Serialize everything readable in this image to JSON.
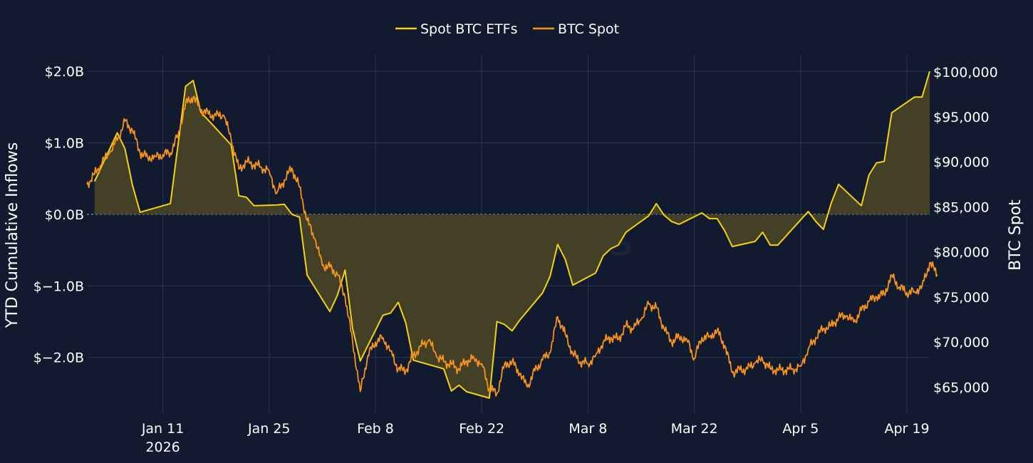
{
  "chart_data": {
    "type": "line",
    "legend_position": "top-center",
    "grid": true,
    "watermark": "blockschres",
    "colors": {
      "background": "#111a2e",
      "etf": "#f5d20f",
      "etf_fill": "#4a4526",
      "spot": "#f7931a",
      "grid": "#283655",
      "zero_line": "#8a93a5"
    },
    "x_axis": {
      "range": [
        "2026-01-01",
        "2026-04-22"
      ],
      "ticks": [
        {
          "date": "2026-01-11",
          "label": "Jan 11",
          "sub": "2026"
        },
        {
          "date": "2026-01-25",
          "label": "Jan 25",
          "sub": ""
        },
        {
          "date": "2026-02-08",
          "label": "Feb 8",
          "sub": ""
        },
        {
          "date": "2026-02-22",
          "label": "Feb 22",
          "sub": ""
        },
        {
          "date": "2026-03-08",
          "label": "Mar 8",
          "sub": ""
        },
        {
          "date": "2026-03-22",
          "label": "Mar 22",
          "sub": ""
        },
        {
          "date": "2026-04-05",
          "label": "Apr 5",
          "sub": ""
        },
        {
          "date": "2026-04-19",
          "label": "Apr 19",
          "sub": ""
        }
      ]
    },
    "y_left": {
      "label": "YTD Cumulative Inflows",
      "unit": "B USD",
      "range": [
        -2.78,
        2.22
      ],
      "ticks": [
        {
          "value": 2.0,
          "label": "$2.0B"
        },
        {
          "value": 1.0,
          "label": "$1.0B"
        },
        {
          "value": 0.0,
          "label": "$0.0B"
        },
        {
          "value": -1.0,
          "label": "$−1.0B"
        },
        {
          "value": -2.0,
          "label": "$−2.0B"
        }
      ]
    },
    "y_right": {
      "label": "BTC Spot",
      "range": [
        62100,
        101800
      ],
      "ticks": [
        {
          "value": 100000,
          "label": "$100,000"
        },
        {
          "value": 95000,
          "label": "$95,000"
        },
        {
          "value": 90000,
          "label": "$90,000"
        },
        {
          "value": 85000,
          "label": "$85,000"
        },
        {
          "value": 80000,
          "label": "$80,000"
        },
        {
          "value": 75000,
          "label": "$75,000"
        },
        {
          "value": 70000,
          "label": "$70,000"
        },
        {
          "value": 65000,
          "label": "$65,000"
        }
      ]
    },
    "series": [
      {
        "name": "Spot BTC ETFs",
        "axis": "left",
        "style": "line-fill-to-zero",
        "points": [
          [
            "2026-01-02",
            0.46
          ],
          [
            "2026-01-05",
            1.14
          ],
          [
            "2026-01-06",
            0.92
          ],
          [
            "2026-01-07",
            0.41
          ],
          [
            "2026-01-08",
            0.03
          ],
          [
            "2026-01-12",
            0.15
          ],
          [
            "2026-01-14",
            1.79
          ],
          [
            "2026-01-15",
            1.87
          ],
          [
            "2026-01-16",
            1.43
          ],
          [
            "2026-01-20",
            0.97
          ],
          [
            "2026-01-21",
            0.26
          ],
          [
            "2026-01-22",
            0.24
          ],
          [
            "2026-01-23",
            0.12
          ],
          [
            "2026-01-26",
            0.13
          ],
          [
            "2026-01-27",
            0.14
          ],
          [
            "2026-01-28",
            0.0
          ],
          [
            "2026-01-29",
            -0.04
          ],
          [
            "2026-01-30",
            -0.85
          ],
          [
            "2026-02-02",
            -1.36
          ],
          [
            "2026-02-03",
            -1.13
          ],
          [
            "2026-02-04",
            -0.78
          ],
          [
            "2026-02-05",
            -1.6
          ],
          [
            "2026-02-06",
            -2.05
          ],
          [
            "2026-02-09",
            -1.41
          ],
          [
            "2026-02-10",
            -1.38
          ],
          [
            "2026-02-11",
            -1.23
          ],
          [
            "2026-02-12",
            -1.52
          ],
          [
            "2026-02-13",
            -2.04
          ],
          [
            "2026-02-17",
            -2.16
          ],
          [
            "2026-02-18",
            -2.47
          ],
          [
            "2026-02-19",
            -2.39
          ],
          [
            "2026-02-20",
            -2.48
          ],
          [
            "2026-02-23",
            -2.57
          ],
          [
            "2026-02-24",
            -1.5
          ],
          [
            "2026-02-25",
            -1.54
          ],
          [
            "2026-02-26",
            -1.63
          ],
          [
            "2026-02-27",
            -1.48
          ],
          [
            "2026-03-02",
            -1.1
          ],
          [
            "2026-03-03",
            -0.87
          ],
          [
            "2026-03-04",
            -0.42
          ],
          [
            "2026-03-05",
            -0.63
          ],
          [
            "2026-03-06",
            -0.99
          ],
          [
            "2026-03-09",
            -0.82
          ],
          [
            "2026-03-10",
            -0.58
          ],
          [
            "2026-03-11",
            -0.48
          ],
          [
            "2026-03-12",
            -0.43
          ],
          [
            "2026-03-13",
            -0.25
          ],
          [
            "2026-03-16",
            -0.02
          ],
          [
            "2026-03-17",
            0.15
          ],
          [
            "2026-03-18",
            -0.01
          ],
          [
            "2026-03-19",
            -0.1
          ],
          [
            "2026-03-20",
            -0.14
          ],
          [
            "2026-03-23",
            0.02
          ],
          [
            "2026-03-24",
            -0.06
          ],
          [
            "2026-03-25",
            -0.06
          ],
          [
            "2026-03-26",
            -0.23
          ],
          [
            "2026-03-27",
            -0.45
          ],
          [
            "2026-03-30",
            -0.38
          ],
          [
            "2026-03-31",
            -0.25
          ],
          [
            "2026-04-01",
            -0.43
          ],
          [
            "2026-04-02",
            -0.43
          ],
          [
            "2026-04-06",
            0.04
          ],
          [
            "2026-04-07",
            -0.1
          ],
          [
            "2026-04-08",
            -0.21
          ],
          [
            "2026-04-09",
            0.15
          ],
          [
            "2026-04-10",
            0.42
          ],
          [
            "2026-04-13",
            0.12
          ],
          [
            "2026-04-14",
            0.55
          ],
          [
            "2026-04-15",
            0.72
          ],
          [
            "2026-04-16",
            0.74
          ],
          [
            "2026-04-17",
            1.42
          ],
          [
            "2026-04-20",
            1.64
          ],
          [
            "2026-04-21",
            1.64
          ],
          [
            "2026-04-22",
            2.0
          ]
        ]
      },
      {
        "name": "BTC Spot",
        "axis": "right",
        "style": "line",
        "points": [
          [
            "2026-01-01",
            87500
          ],
          [
            "2026-01-02",
            88600
          ],
          [
            "2026-01-03",
            89900
          ],
          [
            "2026-01-04",
            91000
          ],
          [
            "2026-01-05",
            92400
          ],
          [
            "2026-01-06",
            94500
          ],
          [
            "2026-01-07",
            93500
          ],
          [
            "2026-01-08",
            91000
          ],
          [
            "2026-01-09",
            90500
          ],
          [
            "2026-01-10",
            90600
          ],
          [
            "2026-01-11",
            90800
          ],
          [
            "2026-01-12",
            91000
          ],
          [
            "2026-01-13",
            93000
          ],
          [
            "2026-01-14",
            96500
          ],
          [
            "2026-01-15",
            97200
          ],
          [
            "2026-01-16",
            95800
          ],
          [
            "2026-01-17",
            95300
          ],
          [
            "2026-01-18",
            95100
          ],
          [
            "2026-01-19",
            95200
          ],
          [
            "2026-01-20",
            92500
          ],
          [
            "2026-01-21",
            89200
          ],
          [
            "2026-01-22",
            90000
          ],
          [
            "2026-01-23",
            89700
          ],
          [
            "2026-01-24",
            89400
          ],
          [
            "2026-01-25",
            89000
          ],
          [
            "2026-01-26",
            86500
          ],
          [
            "2026-01-27",
            88000
          ],
          [
            "2026-01-28",
            89300
          ],
          [
            "2026-01-29",
            87200
          ],
          [
            "2026-01-30",
            83500
          ],
          [
            "2026-01-31",
            81500
          ],
          [
            "2026-02-01",
            78500
          ],
          [
            "2026-02-02",
            78300
          ],
          [
            "2026-02-03",
            77500
          ],
          [
            "2026-02-04",
            75000
          ],
          [
            "2026-02-05",
            70000
          ],
          [
            "2026-02-06",
            64500
          ],
          [
            "2026-02-07",
            68500
          ],
          [
            "2026-02-08",
            70000
          ],
          [
            "2026-02-09",
            70500
          ],
          [
            "2026-02-10",
            69000
          ],
          [
            "2026-02-11",
            67000
          ],
          [
            "2026-02-12",
            66800
          ],
          [
            "2026-02-13",
            68500
          ],
          [
            "2026-02-14",
            69500
          ],
          [
            "2026-02-15",
            70200
          ],
          [
            "2026-02-16",
            68500
          ],
          [
            "2026-02-17",
            67800
          ],
          [
            "2026-02-18",
            67500
          ],
          [
            "2026-02-19",
            67000
          ],
          [
            "2026-02-20",
            67900
          ],
          [
            "2026-02-21",
            68200
          ],
          [
            "2026-02-22",
            67600
          ],
          [
            "2026-02-23",
            64800
          ],
          [
            "2026-02-24",
            64300
          ],
          [
            "2026-02-25",
            67500
          ],
          [
            "2026-02-26",
            67800
          ],
          [
            "2026-02-27",
            66500
          ],
          [
            "2026-02-28",
            65000
          ],
          [
            "2026-03-01",
            66800
          ],
          [
            "2026-03-02",
            68000
          ],
          [
            "2026-03-03",
            68800
          ],
          [
            "2026-03-04",
            72800
          ],
          [
            "2026-03-05",
            70900
          ],
          [
            "2026-03-06",
            68700
          ],
          [
            "2026-03-07",
            67800
          ],
          [
            "2026-03-08",
            67600
          ],
          [
            "2026-03-09",
            68500
          ],
          [
            "2026-03-10",
            70000
          ],
          [
            "2026-03-11",
            70500
          ],
          [
            "2026-03-12",
            70300
          ],
          [
            "2026-03-13",
            71800
          ],
          [
            "2026-03-14",
            71500
          ],
          [
            "2026-03-15",
            72500
          ],
          [
            "2026-03-16",
            74200
          ],
          [
            "2026-03-17",
            73800
          ],
          [
            "2026-03-18",
            71500
          ],
          [
            "2026-03-19",
            70000
          ],
          [
            "2026-03-20",
            70600
          ],
          [
            "2026-03-21",
            70300
          ],
          [
            "2026-03-22",
            68200
          ],
          [
            "2026-03-23",
            70500
          ],
          [
            "2026-03-24",
            70600
          ],
          [
            "2026-03-25",
            71300
          ],
          [
            "2026-03-26",
            69600
          ],
          [
            "2026-03-27",
            66600
          ],
          [
            "2026-03-28",
            66900
          ],
          [
            "2026-03-29",
            67000
          ],
          [
            "2026-03-30",
            67700
          ],
          [
            "2026-03-31",
            68000
          ],
          [
            "2026-04-01",
            67000
          ],
          [
            "2026-04-02",
            66900
          ],
          [
            "2026-04-03",
            66900
          ],
          [
            "2026-04-04",
            67000
          ],
          [
            "2026-04-05",
            67300
          ],
          [
            "2026-04-06",
            69200
          ],
          [
            "2026-04-07",
            70500
          ],
          [
            "2026-04-08",
            71500
          ],
          [
            "2026-04-09",
            71800
          ],
          [
            "2026-04-10",
            72700
          ],
          [
            "2026-04-11",
            72900
          ],
          [
            "2026-04-12",
            72200
          ],
          [
            "2026-04-13",
            73500
          ],
          [
            "2026-04-14",
            74500
          ],
          [
            "2026-04-15",
            75000
          ],
          [
            "2026-04-16",
            75300
          ],
          [
            "2026-04-17",
            77400
          ],
          [
            "2026-04-18",
            76100
          ],
          [
            "2026-04-19",
            75500
          ],
          [
            "2026-04-20",
            75600
          ],
          [
            "2026-04-21",
            76200
          ],
          [
            "2026-04-22",
            78800
          ],
          [
            "2026-04-23",
            77500
          ]
        ]
      }
    ]
  }
}
